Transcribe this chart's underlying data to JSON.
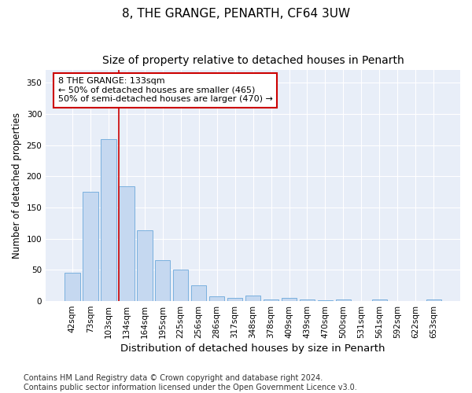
{
  "title": "8, THE GRANGE, PENARTH, CF64 3UW",
  "subtitle": "Size of property relative to detached houses in Penarth",
  "xlabel": "Distribution of detached houses by size in Penarth",
  "ylabel": "Number of detached properties",
  "categories": [
    "42sqm",
    "73sqm",
    "103sqm",
    "134sqm",
    "164sqm",
    "195sqm",
    "225sqm",
    "256sqm",
    "286sqm",
    "317sqm",
    "348sqm",
    "378sqm",
    "409sqm",
    "439sqm",
    "470sqm",
    "500sqm",
    "531sqm",
    "561sqm",
    "592sqm",
    "622sqm",
    "653sqm"
  ],
  "values": [
    45,
    175,
    260,
    184,
    113,
    65,
    51,
    25,
    8,
    5,
    9,
    3,
    5,
    2,
    1,
    2,
    0,
    2,
    0,
    0,
    2
  ],
  "bar_color": "#c5d8f0",
  "bar_edge_color": "#7ab0de",
  "vline_color": "#cc0000",
  "vline_x_index": 3,
  "annotation_text": "8 THE GRANGE: 133sqm\n← 50% of detached houses are smaller (465)\n50% of semi-detached houses are larger (470) →",
  "annotation_box_facecolor": "white",
  "annotation_box_edgecolor": "#cc0000",
  "ylim": [
    0,
    370
  ],
  "yticks": [
    0,
    50,
    100,
    150,
    200,
    250,
    300,
    350
  ],
  "fig_facecolor": "#ffffff",
  "plot_facecolor": "#e8eef8",
  "footnote": "Contains HM Land Registry data © Crown copyright and database right 2024.\nContains public sector information licensed under the Open Government Licence v3.0.",
  "title_fontsize": 11,
  "subtitle_fontsize": 10,
  "xlabel_fontsize": 9.5,
  "ylabel_fontsize": 8.5,
  "tick_fontsize": 7.5,
  "annot_fontsize": 8,
  "footnote_fontsize": 7
}
